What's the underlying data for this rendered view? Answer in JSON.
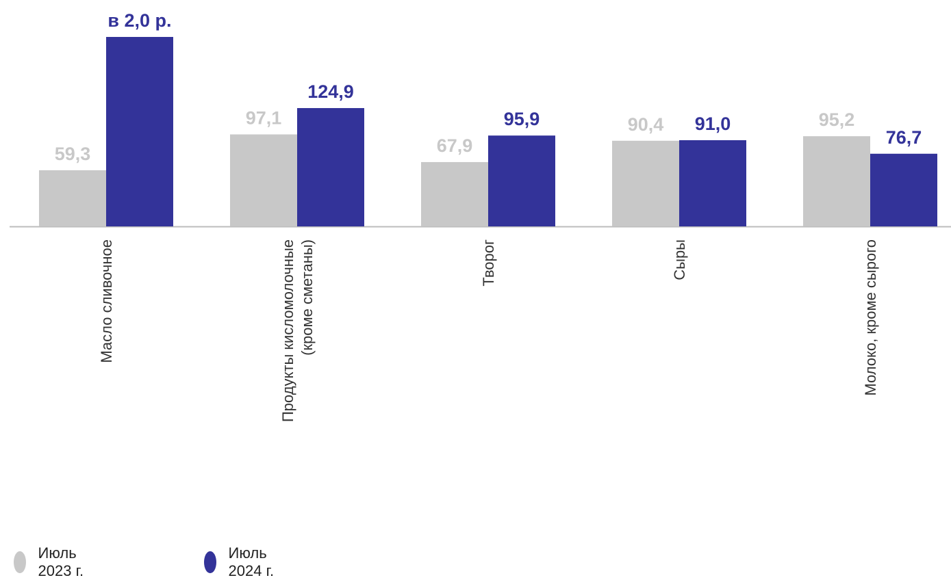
{
  "chart_data": {
    "type": "bar",
    "categories": [
      [
        "Масло сливочное"
      ],
      [
        "Продукты кисломолочные",
        "(кроме сметаны)"
      ],
      [
        "Творог"
      ],
      [
        "Сыры"
      ],
      [
        "Молоко, кроме сырого"
      ]
    ],
    "series": [
      {
        "name": "Июль 2023 г.",
        "color": "#c8c8c8",
        "label_color": "#c8c8c8",
        "values": [
          59.3,
          97.1,
          67.9,
          90.4,
          95.2
        ],
        "labels": [
          "59,3",
          "97,1",
          "67,9",
          "90,4",
          "95,2"
        ]
      },
      {
        "name": "Июль 2024 г.",
        "color": "#333399",
        "label_color": "#333399",
        "values": [
          200,
          124.9,
          95.9,
          91.0,
          76.7
        ],
        "labels": [
          "в 2,0 р.",
          "124,9",
          "95,9",
          "91,0",
          "76,7"
        ]
      }
    ],
    "ylim": [
      0,
      200
    ],
    "grid": false,
    "legend_position": "bottom-left"
  }
}
